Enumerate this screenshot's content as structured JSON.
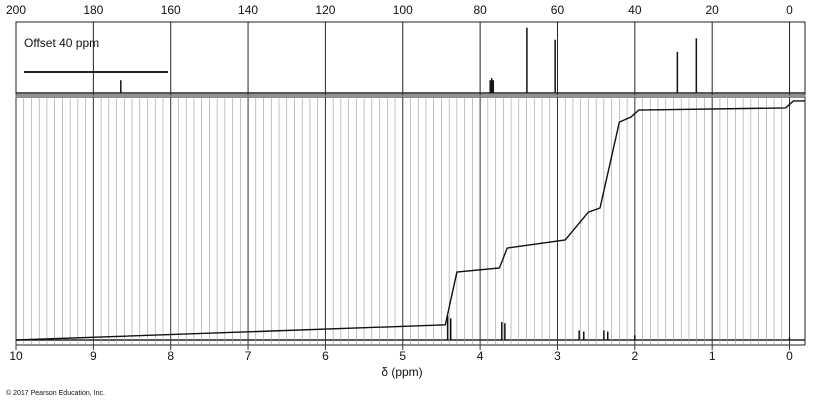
{
  "chart_data": [
    {
      "type": "spectrum",
      "annotation": "Offset 40 ppm",
      "xlim": [
        200,
        -4
      ],
      "xticks": [
        200,
        180,
        160,
        140,
        120,
        100,
        80,
        60,
        40,
        20,
        0
      ],
      "ylim": [
        0,
        100
      ],
      "x": [
        172.9,
        77.4,
        77.0,
        76.6,
        67.9,
        60.6,
        29.0,
        24.1
      ],
      "values": [
        18,
        18,
        21,
        18,
        92,
        75,
        58,
        77
      ]
    },
    {
      "type": "spectrum",
      "xlabel": "δ (ppm)",
      "xlim": [
        10,
        -0.2
      ],
      "xticks": [
        10,
        9,
        8,
        7,
        6,
        5,
        4,
        3,
        2,
        1,
        0
      ],
      "ylim": [
        0,
        100
      ],
      "x": [
        4.42,
        4.38,
        3.72,
        3.68,
        2.72,
        2.66,
        2.4,
        2.35,
        2.0,
        0
      ],
      "values": [
        10,
        9,
        7.5,
        7,
        4,
        3.5,
        4,
        3.5,
        2,
        1
      ],
      "integral": {
        "x": [
          10,
          4.45,
          4.3,
          3.75,
          3.65,
          2.9,
          2.6,
          2.45,
          2.2,
          2.05,
          1.95,
          0.05,
          -0.05,
          -0.2
        ],
        "y": [
          0,
          6.3,
          28.3,
          30,
          38.3,
          41.7,
          53.3,
          55,
          90.8,
          92.9,
          95.8,
          96.7,
          99.6,
          99.6
        ]
      }
    }
  ],
  "credit": "© 2017 Pearson Education, Inc."
}
